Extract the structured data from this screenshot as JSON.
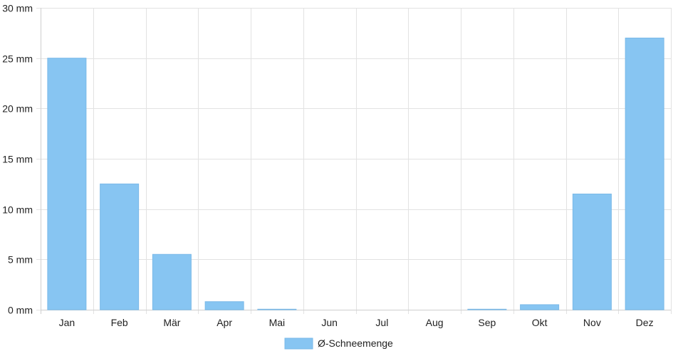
{
  "colors": {
    "bar": "#87c5f2",
    "bar_stroke": "#7ab9e8",
    "grid": "#e2e2e2",
    "axis": "#cfcfcf",
    "text": "#222222"
  },
  "chart_data": {
    "type": "bar",
    "categories": [
      "Jan",
      "Feb",
      "Mär",
      "Apr",
      "Mai",
      "Jun",
      "Jul",
      "Aug",
      "Sep",
      "Okt",
      "Nov",
      "Dez"
    ],
    "series": [
      {
        "name": "Ø-Schneemenge",
        "values": [
          25,
          12.5,
          5.5,
          0.8,
          0.05,
          0,
          0,
          0,
          0.05,
          0.5,
          11.5,
          27
        ]
      }
    ],
    "y_unit": "mm",
    "ylim": [
      0,
      30
    ],
    "yticks": [
      0,
      5,
      10,
      15,
      20,
      25,
      30
    ],
    "ytick_labels": [
      "0 mm",
      "5 mm",
      "10 mm",
      "15 mm",
      "20 mm",
      "25 mm",
      "30 mm"
    ],
    "grid": true,
    "legend_position": "bottom-center"
  }
}
